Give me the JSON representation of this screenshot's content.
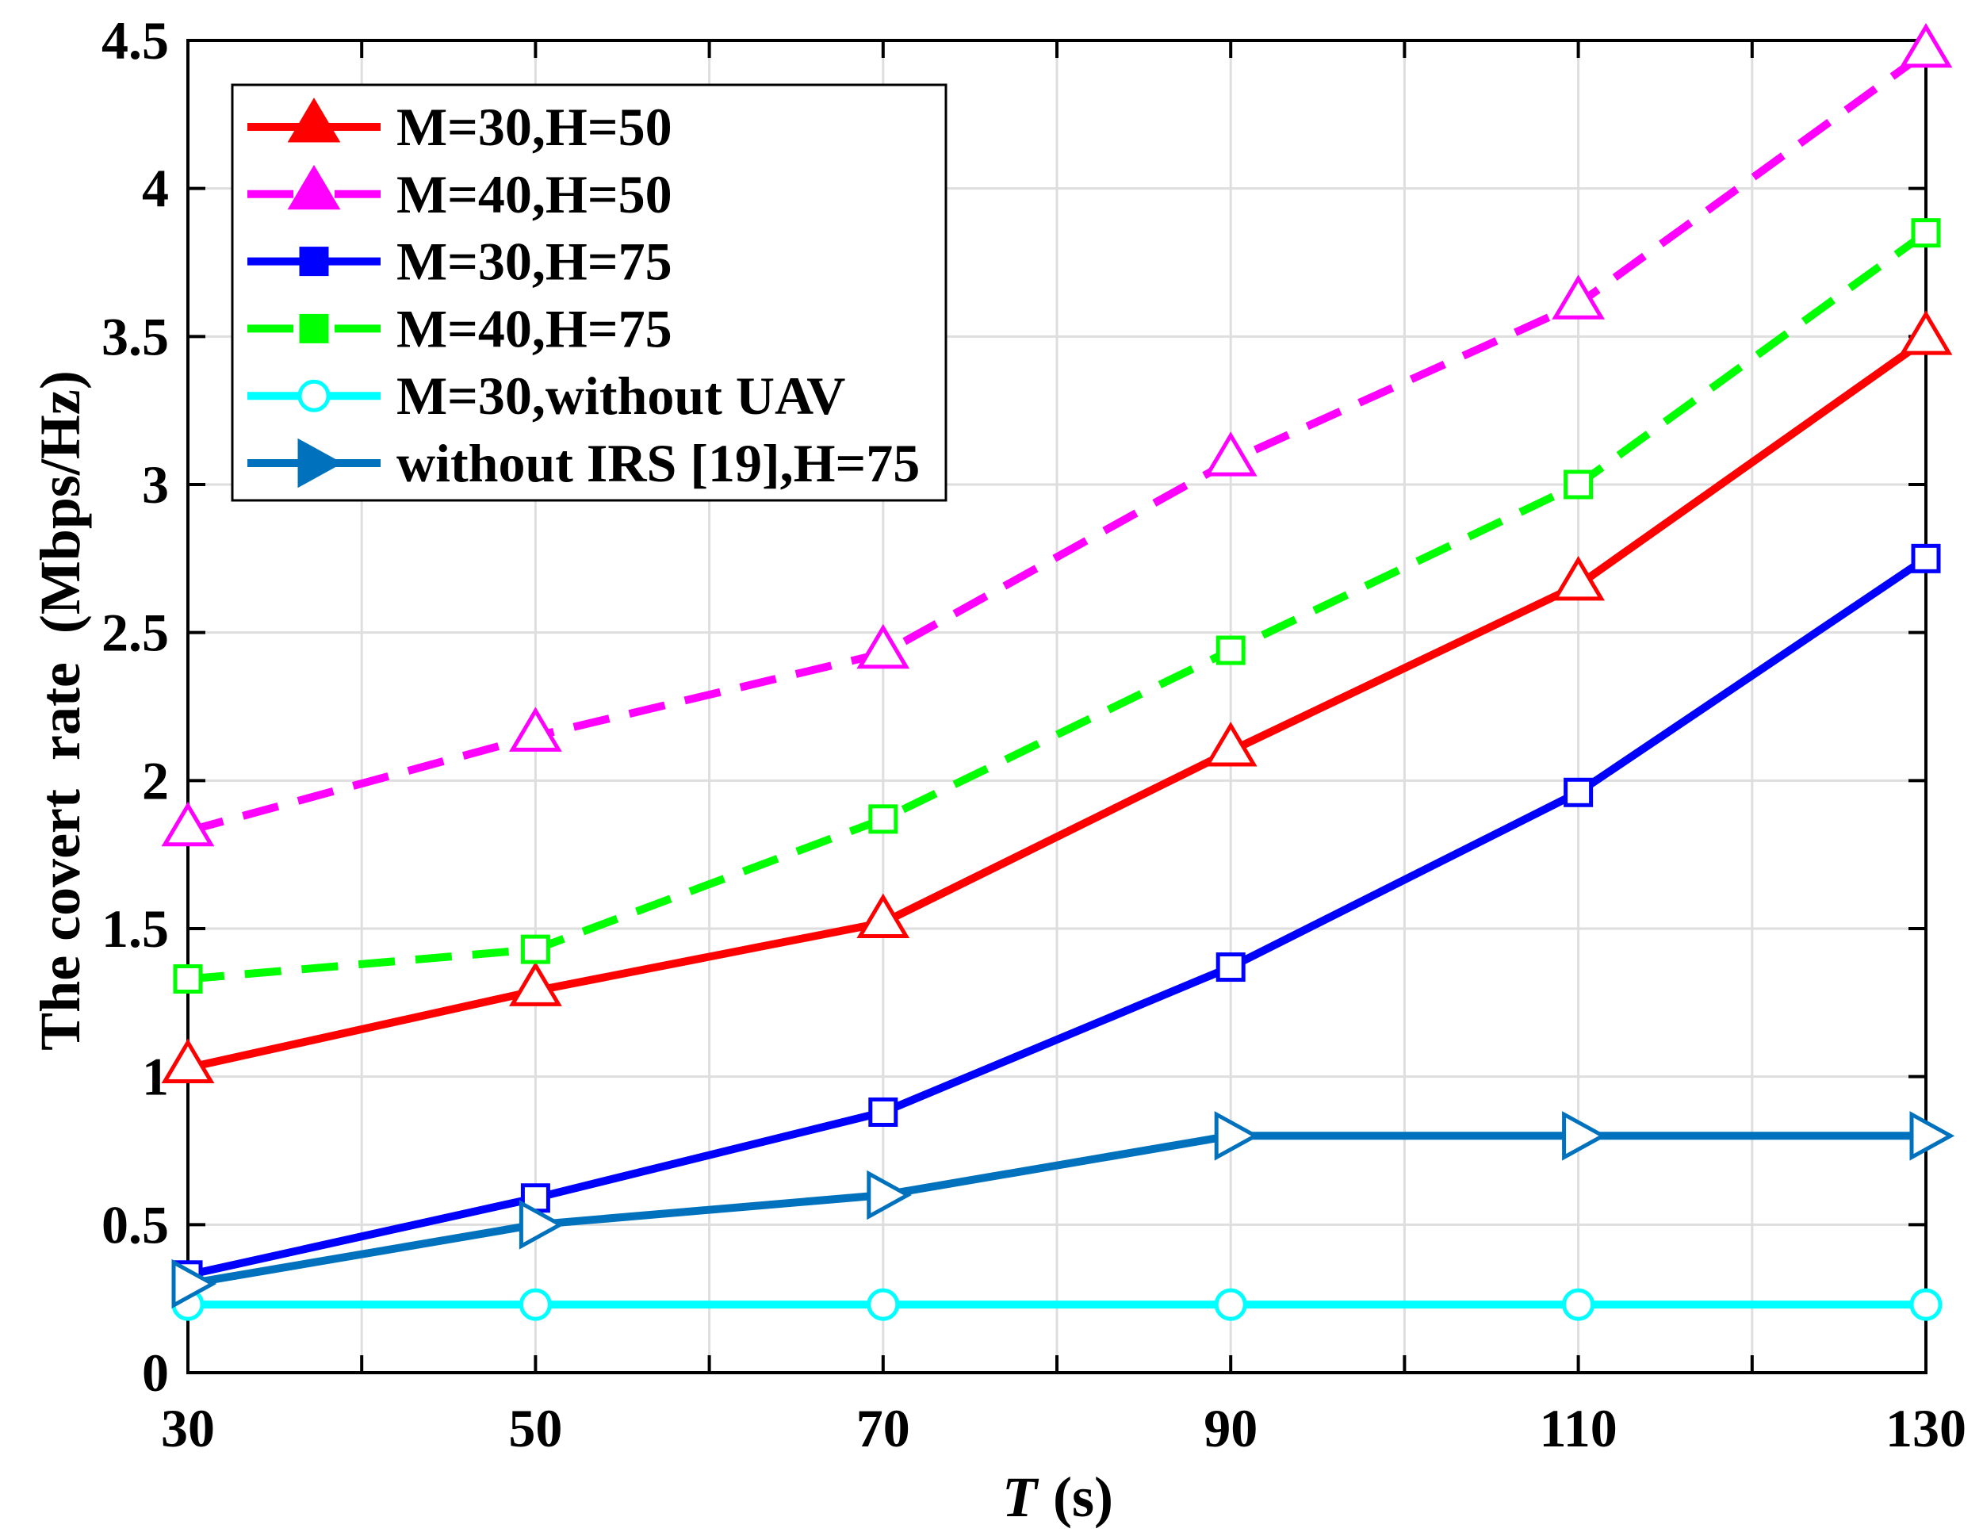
{
  "chart_data": {
    "type": "line",
    "title": "",
    "xlabel": {
      "variable": "T",
      "unit": "(s)"
    },
    "ylabel": "The covert  rate  (Mbps/Hz)",
    "xlim": [
      30,
      130
    ],
    "ylim": [
      0,
      4.5
    ],
    "x": [
      30,
      50,
      70,
      90,
      110,
      130
    ],
    "xticks": [
      30,
      50,
      70,
      90,
      110,
      130
    ],
    "xgrid": [
      30,
      40,
      50,
      60,
      70,
      80,
      90,
      100,
      110,
      120,
      130
    ],
    "yticks": [
      0,
      0.5,
      1,
      1.5,
      2,
      2.5,
      3,
      3.5,
      4,
      4.5
    ],
    "grid": true,
    "legend_location": "top-left",
    "series": [
      {
        "name": "M=30,H=50",
        "values": [
          1.03,
          1.29,
          1.52,
          2.1,
          2.66,
          3.49
        ],
        "color": "#ff0000",
        "line_style": "solid",
        "marker": "triangle-up"
      },
      {
        "name": "M=40,H=50",
        "values": [
          1.83,
          2.15,
          2.43,
          3.08,
          3.61,
          4.46
        ],
        "color": "#ff00ff",
        "line_style": "dashed",
        "marker": "triangle-up"
      },
      {
        "name": "M=30,H=75",
        "values": [
          0.33,
          0.59,
          0.88,
          1.37,
          1.96,
          2.75
        ],
        "color": "#0000ff",
        "line_style": "solid",
        "marker": "square"
      },
      {
        "name": "M=40,H=75",
        "values": [
          1.33,
          1.43,
          1.87,
          2.44,
          3.0,
          3.85
        ],
        "color": "#00ff00",
        "line_style": "dashed",
        "marker": "square"
      },
      {
        "name": "M=30,without UAV",
        "values": [
          0.23,
          0.23,
          0.23,
          0.23,
          0.23,
          0.23
        ],
        "color": "#00ffff",
        "line_style": "solid",
        "marker": "circle"
      },
      {
        "name": "without IRS [19],H=75",
        "values": [
          0.3,
          0.5,
          0.6,
          0.8,
          0.8,
          0.8
        ],
        "color": "#0072bd",
        "line_style": "solid",
        "marker": "triangle-right"
      }
    ]
  }
}
